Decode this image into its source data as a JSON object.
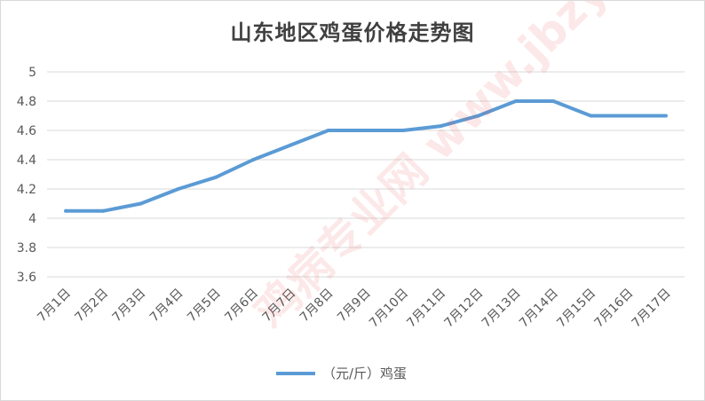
{
  "chart_data": {
    "type": "line",
    "title": "山东地区鸡蛋价格走势图",
    "xlabel": "",
    "ylabel": "",
    "categories": [
      "7月1日",
      "7月2日",
      "7月3日",
      "7月4日",
      "7月5日",
      "7月6日",
      "7月7日",
      "7月8日",
      "7月9日",
      "7月10日",
      "7月11日",
      "7月12日",
      "7月13日",
      "7月14日",
      "7月15日",
      "7月16日",
      "7月17日"
    ],
    "yticks": [
      "3.6",
      "3.8",
      "4",
      "4.2",
      "4.4",
      "4.6",
      "4.8",
      "5"
    ],
    "ylim": [
      3.6,
      5
    ],
    "grid": true,
    "legend_position": "bottom",
    "series": [
      {
        "name": "（元/斤）鸡蛋",
        "color": "#5b9bd5",
        "values": [
          4.05,
          4.05,
          4.1,
          4.2,
          4.28,
          4.4,
          4.5,
          4.6,
          4.6,
          4.6,
          4.63,
          4.7,
          4.8,
          4.8,
          4.7,
          4.7,
          4.7
        ]
      }
    ]
  },
  "watermark": "鸡病专业网 www.jbzyw.com"
}
